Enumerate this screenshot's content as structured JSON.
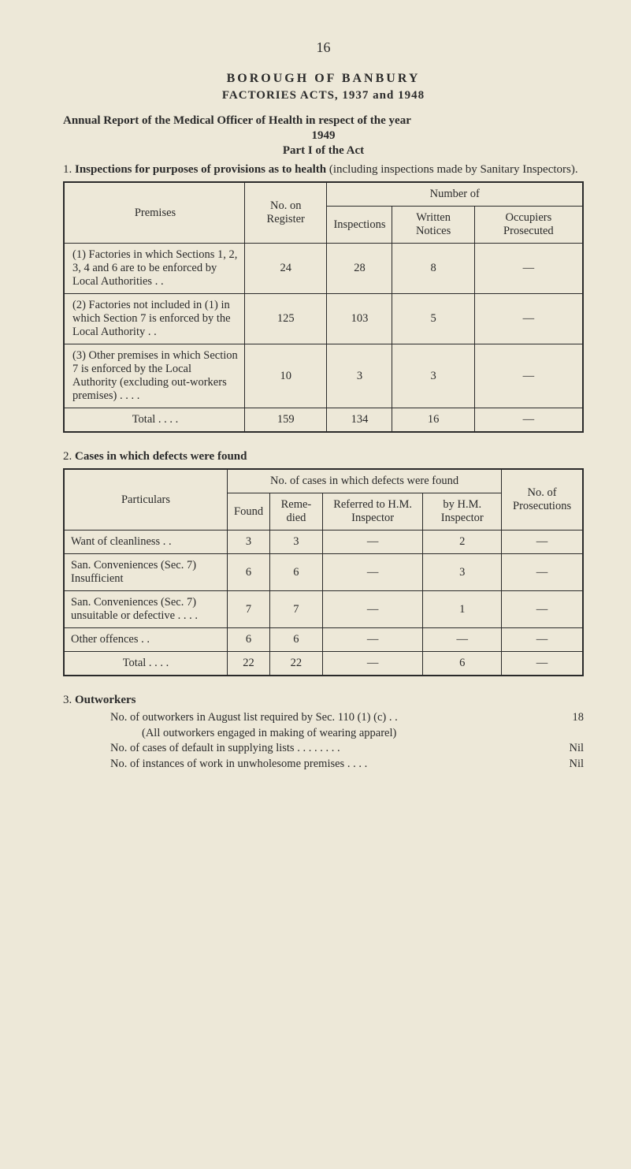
{
  "page_number": "16",
  "header": {
    "borough": "BOROUGH  OF  BANBURY",
    "factories": "FACTORIES ACTS, 1937 and 1948",
    "annual_report": "Annual Report of the Medical Officer of Health in respect of the year",
    "year": "1949",
    "part": "Part I of the Act"
  },
  "section1": {
    "num": "1.",
    "title_bold": "Inspections for purposes of provisions as to health",
    "title_rest": " (including inspections made by Sanitary Inspectors).",
    "table": {
      "headers": {
        "premises": "Premises",
        "no_on_register": "No. on Register",
        "number_of": "Number of",
        "inspections": "Inspections",
        "written_notices": "Written Notices",
        "occupiers_prosecuted": "Occupiers Prosecuted"
      },
      "rows": [
        {
          "premises": "(1) Factories in which Sections 1, 2, 3, 4 and 6 are to be en­forced by Local Authorities  . .",
          "register": "24",
          "inspections": "28",
          "notices": "8",
          "prosecuted": "—"
        },
        {
          "premises": "(2) Factories not in­cluded in (1) in which Section 7 is enforced by the Local Authority . .",
          "register": "125",
          "inspections": "103",
          "notices": "5",
          "prosecuted": "—"
        },
        {
          "premises": "(3) Other premises in which Section 7 is enforced by the Lo­cal Authority (ex­cluding out-workers premises) . .   . .",
          "register": "10",
          "inspections": "3",
          "notices": "3",
          "prosecuted": "—"
        }
      ],
      "total": {
        "label": "Total  . .    . .",
        "register": "159",
        "inspections": "134",
        "notices": "16",
        "prosecuted": "—"
      }
    }
  },
  "section2": {
    "num": "2.",
    "title": "Cases in which defects were found",
    "table": {
      "headers": {
        "particulars": "Particulars",
        "top": "No. of cases in which defects were found",
        "found": "Found",
        "remedied": "Reme­died",
        "referred": "Referred to H.M. Inspector",
        "by_hm": "by H.M. Inspector",
        "prosecutions": "No. of Prosecu­tions"
      },
      "rows": [
        {
          "particulars": "Want of cleanliness . .",
          "found": "3",
          "remedied": "3",
          "referred": "—",
          "by_hm": "2",
          "prosecutions": "—"
        },
        {
          "particulars": "San. Conveniences (Sec. 7) Insufficient",
          "found": "6",
          "remedied": "6",
          "referred": "—",
          "by_hm": "3",
          "prosecutions": "—"
        },
        {
          "particulars": "San. Conveniences (Sec. 7) unsuitable or defective   . .    . .",
          "found": "7",
          "remedied": "7",
          "referred": "—",
          "by_hm": "1",
          "prosecutions": "—"
        },
        {
          "particulars": "Other offences    . .",
          "found": "6",
          "remedied": "6",
          "referred": "—",
          "by_hm": "—",
          "prosecutions": "—"
        }
      ],
      "total": {
        "label": "Total . .    . .",
        "found": "22",
        "remedied": "22",
        "referred": "—",
        "by_hm": "6",
        "prosecutions": "—"
      }
    }
  },
  "section3": {
    "num": "3.",
    "title": "Outworkers",
    "lines": [
      {
        "text": "No. of outworkers in August list required by Sec. 110 (1) (c)    . .",
        "value": "18"
      },
      {
        "text": "(All outworkers engaged in making of wearing apparel)",
        "value": ""
      },
      {
        "text": "No. of cases of default in supplying lists  . .      . .      . .      . .",
        "value": "Nil"
      },
      {
        "text": "No. of instances of work in unwholesome premises      . .    . .",
        "value": "Nil"
      }
    ]
  }
}
